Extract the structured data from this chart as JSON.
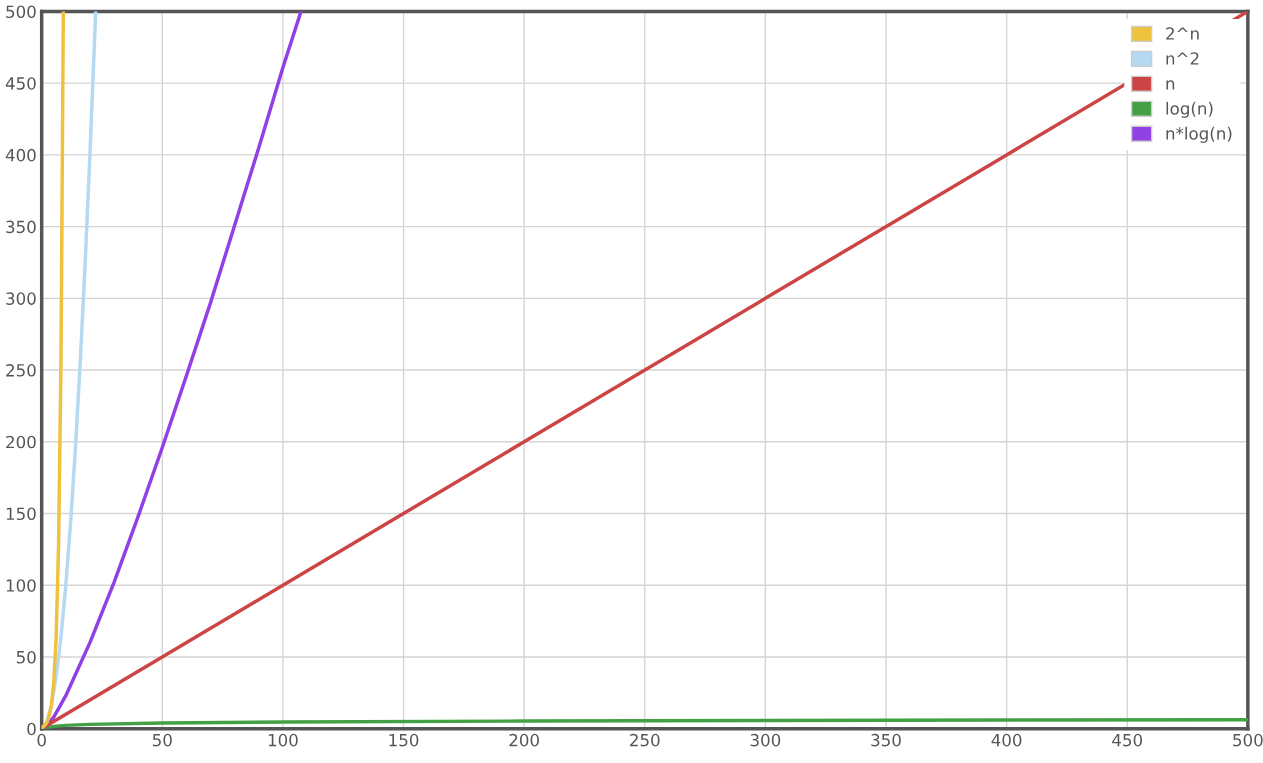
{
  "chart_data": {
    "type": "line",
    "xlim": [
      0,
      500
    ],
    "ylim": [
      0,
      500
    ],
    "xticks": [
      0,
      50,
      100,
      150,
      200,
      250,
      300,
      350,
      400,
      450,
      500
    ],
    "yticks": [
      0,
      50,
      100,
      150,
      200,
      250,
      300,
      350,
      400,
      450,
      500
    ],
    "grid": true,
    "legend": "top right",
    "marker": "none",
    "line_style": "solid",
    "series": [
      {
        "name": "2^n",
        "color": "#efc23d",
        "x": [
          0,
          1,
          2,
          3,
          4,
          5,
          6,
          7,
          8,
          8.97
        ],
        "values": [
          1,
          2,
          4,
          8,
          16,
          32,
          64,
          128,
          256,
          500
        ]
      },
      {
        "name": "n^2",
        "color": "#b5d9f2",
        "x": [
          0,
          2,
          4,
          6,
          8,
          10,
          12,
          14,
          16,
          18,
          20,
          22,
          22.4
        ],
        "values": [
          0,
          4,
          16,
          36,
          64,
          100,
          144,
          196,
          256,
          324,
          400,
          484,
          500
        ]
      },
      {
        "name": "n",
        "color": "#cc4444",
        "x": [
          0,
          100,
          200,
          300,
          400,
          500
        ],
        "values": [
          0,
          100,
          200,
          300,
          400,
          500
        ]
      },
      {
        "name": "log(n)",
        "color": "#44a044",
        "x": [
          1,
          2,
          5,
          10,
          20,
          50,
          100,
          200,
          300,
          400,
          500
        ],
        "values": [
          0,
          0.7,
          1.6,
          2.3,
          3.0,
          3.9,
          4.6,
          5.3,
          5.7,
          6.0,
          6.2
        ]
      },
      {
        "name": "n*log(n)",
        "color": "#9140e6",
        "x": [
          1,
          5,
          10,
          20,
          30,
          40,
          50,
          60,
          70,
          80,
          90,
          100,
          107.5
        ],
        "values": [
          0,
          8,
          23,
          60,
          102,
          148,
          196,
          246,
          297,
          351,
          405,
          461,
          500
        ]
      }
    ]
  }
}
